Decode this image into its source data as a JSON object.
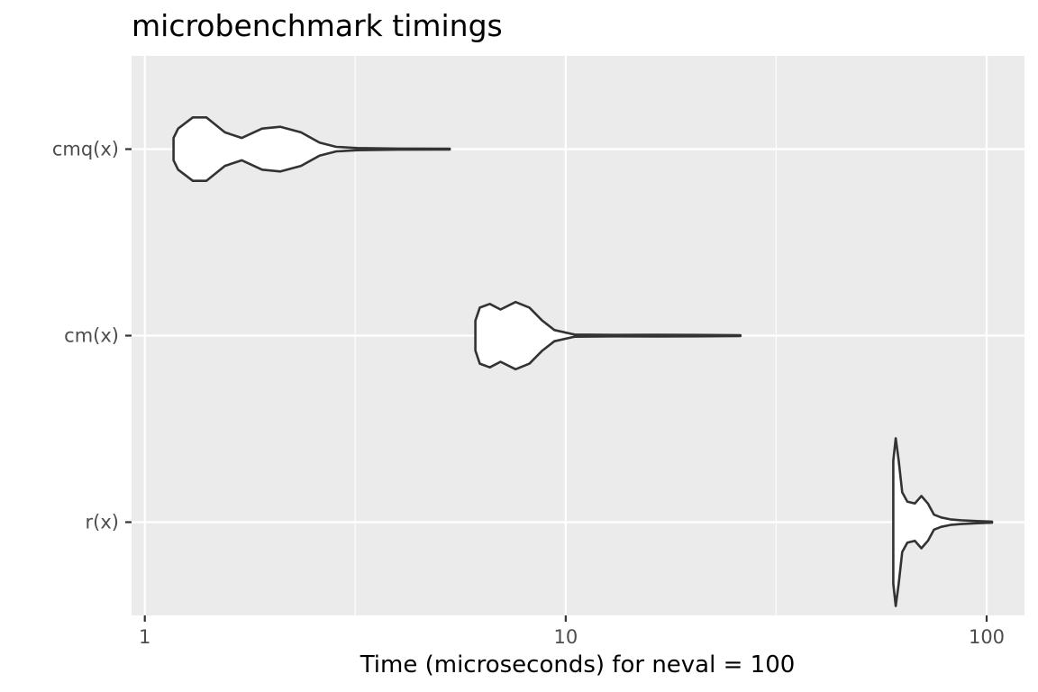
{
  "chart_data": {
    "type": "violin",
    "title": "microbenchmark timings",
    "xlabel": "Time (microseconds) for neval = 100",
    "ylabel": "",
    "x_scale": "log10",
    "xlim": [
      0.93,
      123
    ],
    "x_ticks": [
      1,
      10,
      100
    ],
    "x_tick_labels": [
      "1",
      "10",
      "100"
    ],
    "x_minor_ticks": [
      3.16,
      31.6
    ],
    "categories": [
      "cmq(x)",
      "cm(x)",
      "r(x)"
    ],
    "grid": true,
    "legend": "none",
    "colors": {
      "panel": "#ebebeb",
      "grid": "#ffffff",
      "violin_fill": "#ffffff",
      "violin_stroke": "#333333"
    },
    "series": [
      {
        "category": "cmq(x)",
        "min": 1.17,
        "max": 5.3,
        "density": [
          [
            1.17,
            0.06
          ],
          [
            1.2,
            0.11
          ],
          [
            1.3,
            0.17
          ],
          [
            1.4,
            0.17
          ],
          [
            1.55,
            0.09
          ],
          [
            1.7,
            0.06
          ],
          [
            1.9,
            0.11
          ],
          [
            2.1,
            0.12
          ],
          [
            2.35,
            0.09
          ],
          [
            2.6,
            0.035
          ],
          [
            2.85,
            0.012
          ],
          [
            3.2,
            0.006
          ],
          [
            4.0,
            0.003
          ],
          [
            5.3,
            0.002
          ]
        ]
      },
      {
        "category": "cm(x)",
        "min": 6.1,
        "max": 26.0,
        "density": [
          [
            6.1,
            0.08
          ],
          [
            6.25,
            0.15
          ],
          [
            6.6,
            0.17
          ],
          [
            7.0,
            0.14
          ],
          [
            7.6,
            0.18
          ],
          [
            8.2,
            0.15
          ],
          [
            8.8,
            0.08
          ],
          [
            9.4,
            0.03
          ],
          [
            10.5,
            0.006
          ],
          [
            13.0,
            0.004
          ],
          [
            16.5,
            0.005
          ],
          [
            20.0,
            0.004
          ],
          [
            26.0,
            0.002
          ]
        ]
      },
      {
        "category": "r(x)",
        "min": 60.0,
        "max": 103.0,
        "density": [
          [
            60.0,
            0.33
          ],
          [
            60.8,
            0.45
          ],
          [
            61.8,
            0.33
          ],
          [
            63.0,
            0.16
          ],
          [
            64.8,
            0.11
          ],
          [
            67.5,
            0.1
          ],
          [
            70.0,
            0.14
          ],
          [
            72.5,
            0.1
          ],
          [
            75.0,
            0.04
          ],
          [
            78.0,
            0.025
          ],
          [
            82.0,
            0.015
          ],
          [
            87.0,
            0.01
          ],
          [
            95.0,
            0.006
          ],
          [
            103.0,
            0.003
          ]
        ]
      }
    ]
  }
}
